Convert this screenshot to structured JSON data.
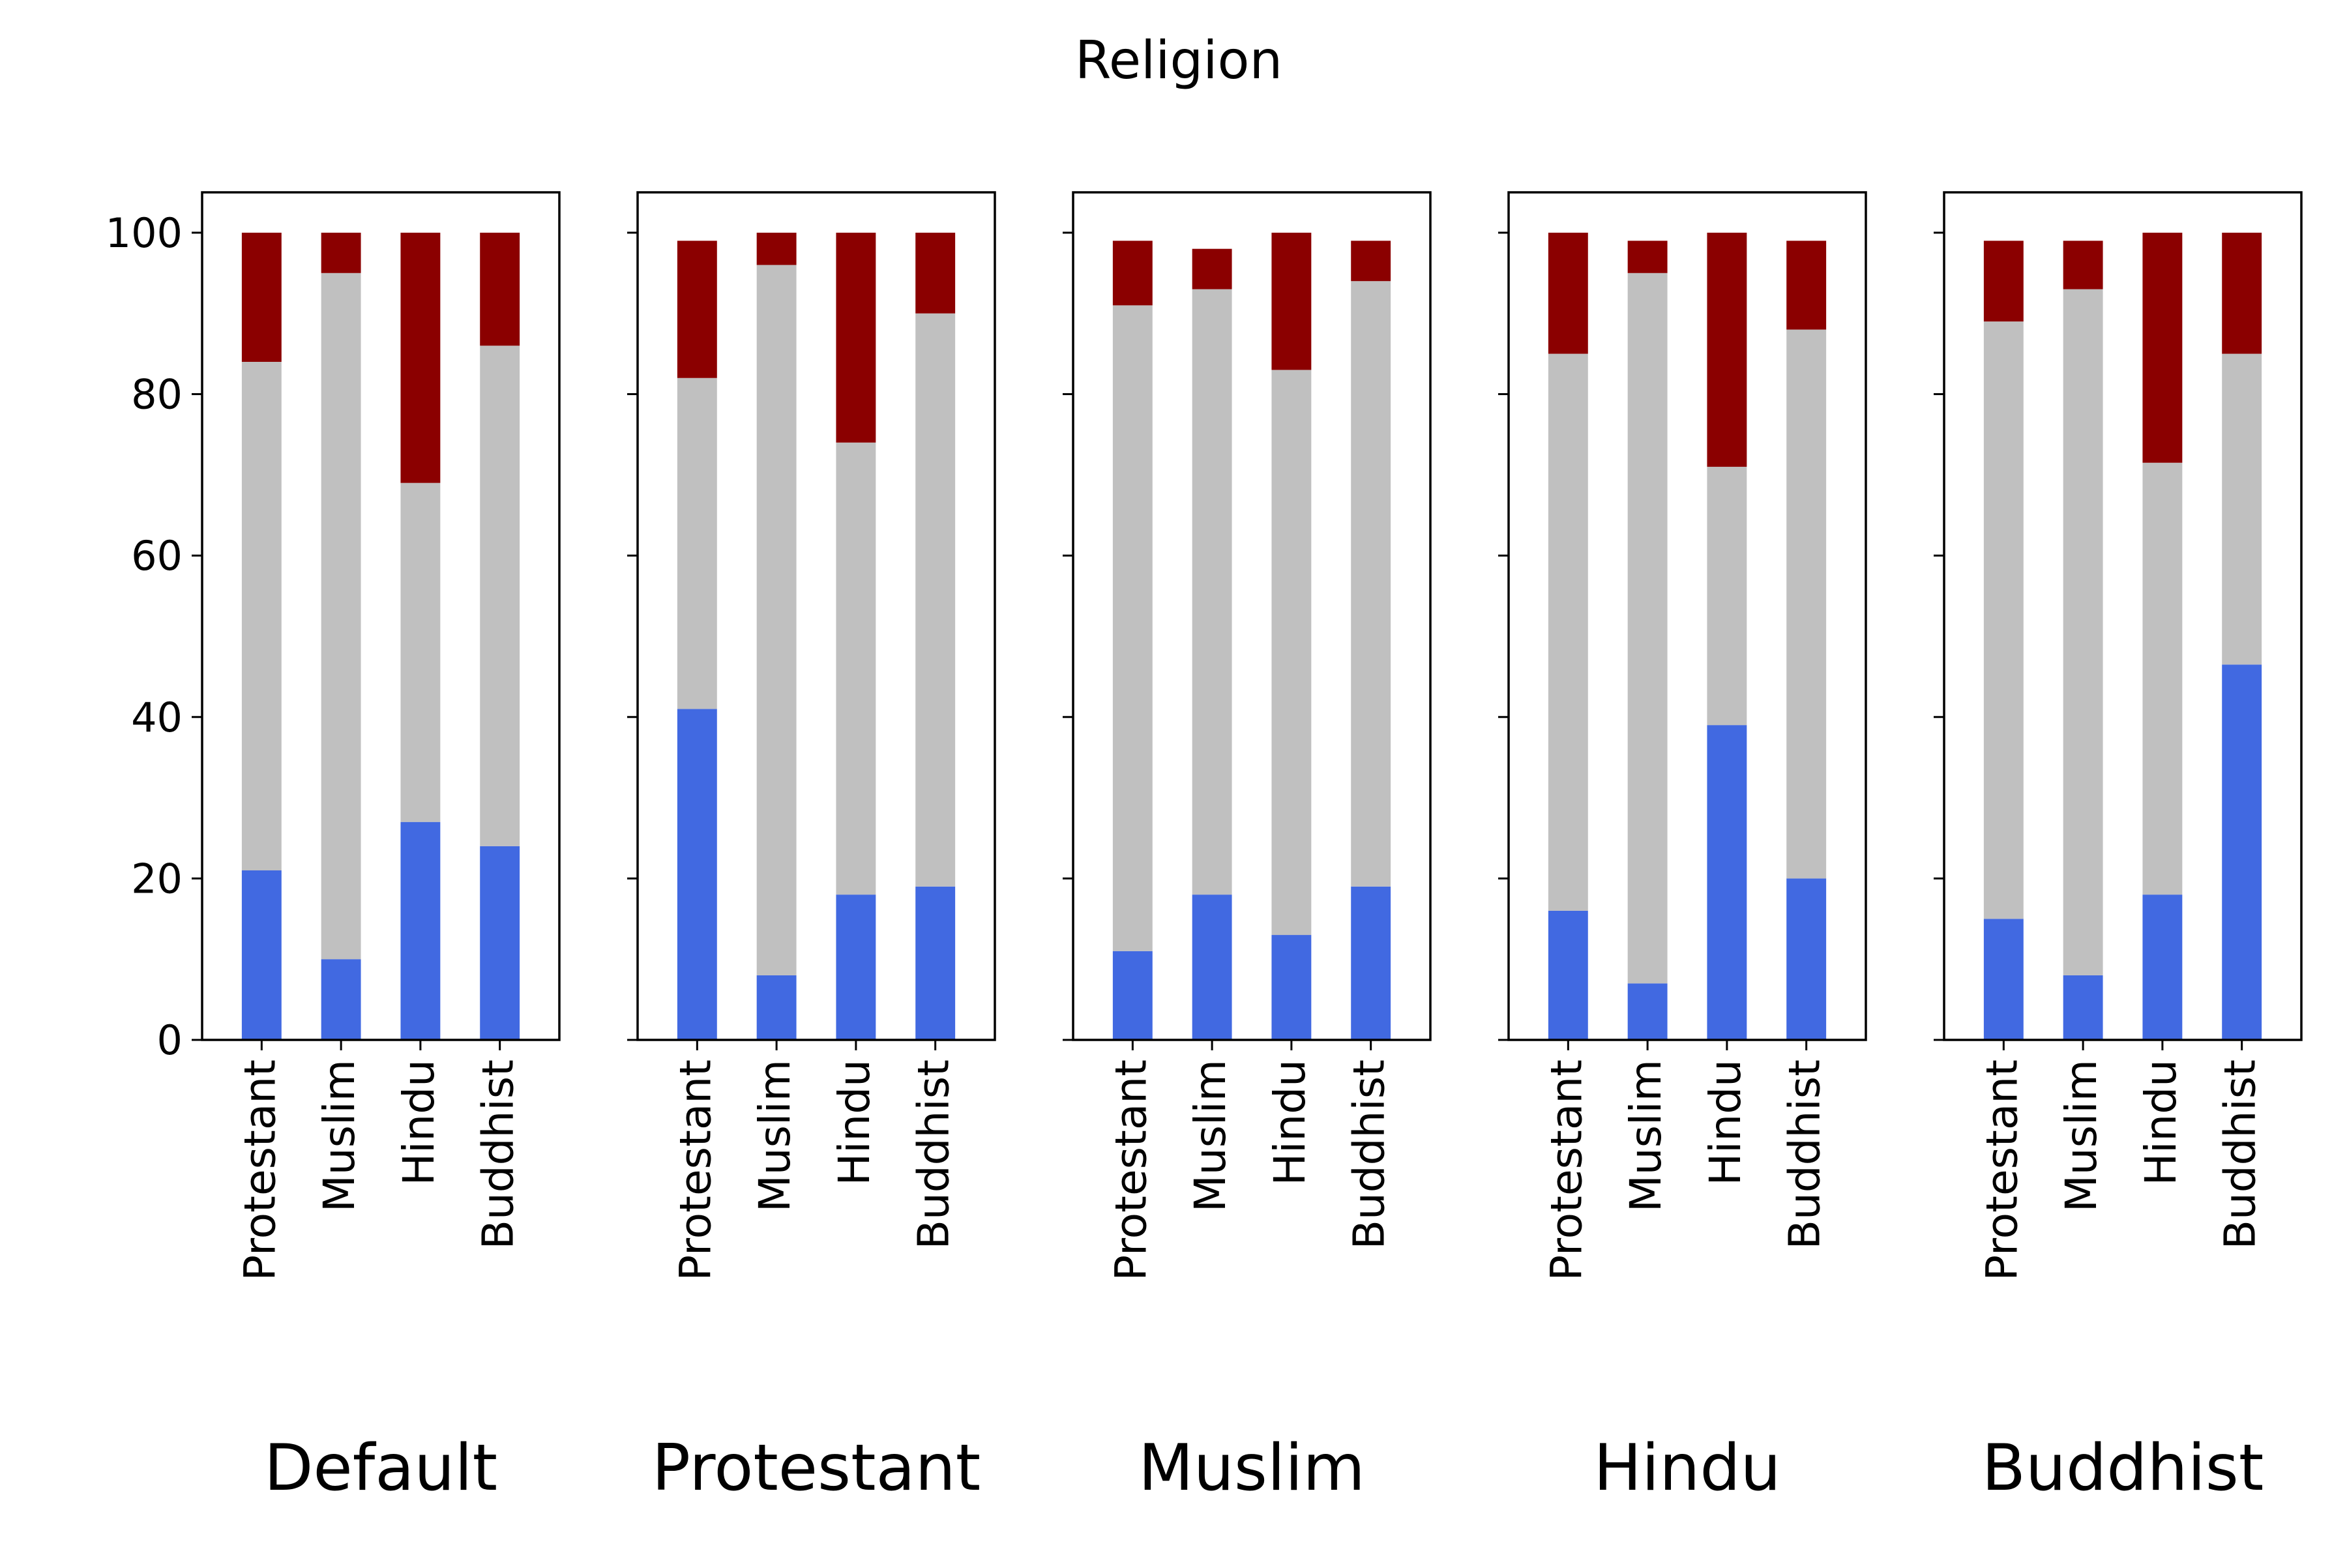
{
  "title": "Religion",
  "colors": {
    "bottom": "#4169e1",
    "middle": "#c0c0c0",
    "top": "#8b0000",
    "axis": "#000000",
    "background": "#ffffff"
  },
  "chart_data": {
    "type": "bar",
    "stacked": true,
    "title": "Religion",
    "ylim": [
      0,
      105
    ],
    "yticks": [
      0,
      20,
      40,
      60,
      80,
      100
    ],
    "grid": false,
    "legend": "none",
    "categories": [
      "Protestant",
      "Muslim",
      "Hindu",
      "Buddhist"
    ],
    "panels": [
      {
        "xlabel": "Default",
        "series": [
          {
            "values": [
              21,
              10,
              27,
              24
            ]
          },
          {
            "values": [
              63,
              85,
              42,
              62
            ]
          },
          {
            "values": [
              16,
              5,
              31,
              14
            ]
          }
        ]
      },
      {
        "xlabel": "Protestant",
        "series": [
          {
            "values": [
              41,
              8,
              18,
              19
            ]
          },
          {
            "values": [
              41,
              88,
              56,
              71
            ]
          },
          {
            "values": [
              17,
              4,
              26,
              10
            ]
          }
        ]
      },
      {
        "xlabel": "Muslim",
        "series": [
          {
            "values": [
              11,
              18,
              13,
              19
            ]
          },
          {
            "values": [
              80,
              75,
              70,
              75
            ]
          },
          {
            "values": [
              8,
              5,
              17,
              5
            ]
          }
        ]
      },
      {
        "xlabel": "Hindu",
        "series": [
          {
            "values": [
              16,
              7,
              39,
              20
            ]
          },
          {
            "values": [
              69,
              88,
              32,
              68
            ]
          },
          {
            "values": [
              15,
              4,
              29,
              11
            ]
          }
        ]
      },
      {
        "xlabel": "Buddhist",
        "series": [
          {
            "values": [
              15,
              8,
              18,
              46.5
            ]
          },
          {
            "values": [
              74,
              85,
              53.5,
              38.5
            ]
          },
          {
            "values": [
              10,
              6,
              28.5,
              15
            ]
          }
        ]
      }
    ]
  }
}
